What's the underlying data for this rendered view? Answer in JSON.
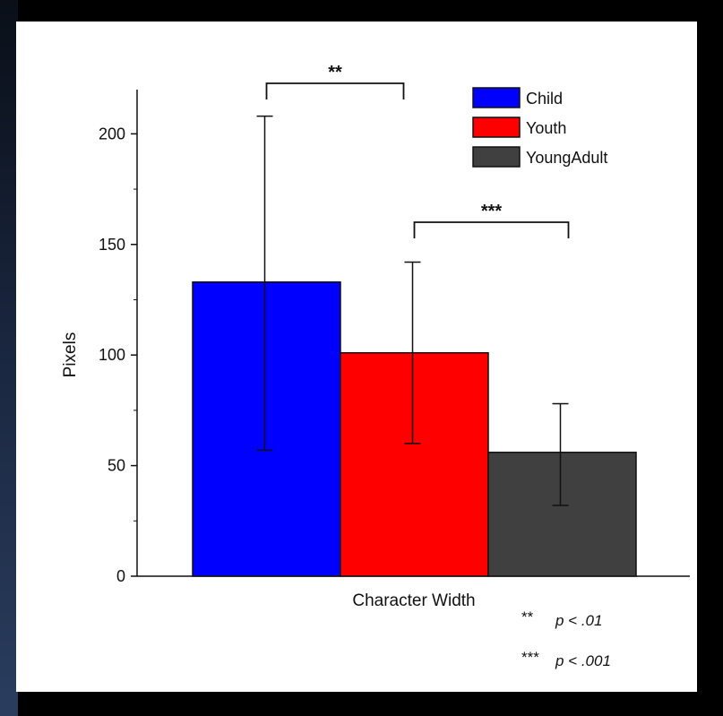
{
  "chart_data": {
    "type": "bar",
    "title": "",
    "xlabel": "Character Width",
    "ylabel": "Pixels",
    "ylim": [
      0,
      220
    ],
    "yticks": [
      0,
      50,
      100,
      150,
      200
    ],
    "legend_position": "top-right",
    "series": [
      {
        "name": "Child",
        "color": "#0000ff",
        "value": 133,
        "error_low": 57,
        "error_high": 208
      },
      {
        "name": "Youth",
        "color": "#ff0000",
        "value": 101,
        "error_low": 60,
        "error_high": 142
      },
      {
        "name": "YoungAdult",
        "color": "#404040",
        "value": 56,
        "error_low": 32,
        "error_high": 78
      }
    ],
    "significance": [
      {
        "between": [
          "Child",
          "Youth"
        ],
        "label": "**"
      },
      {
        "between": [
          "Youth",
          "YoungAdult"
        ],
        "label": "***"
      }
    ],
    "notes": [
      {
        "stars": "**",
        "text": "p < .01"
      },
      {
        "stars": "***",
        "text": "p < .001"
      }
    ]
  }
}
